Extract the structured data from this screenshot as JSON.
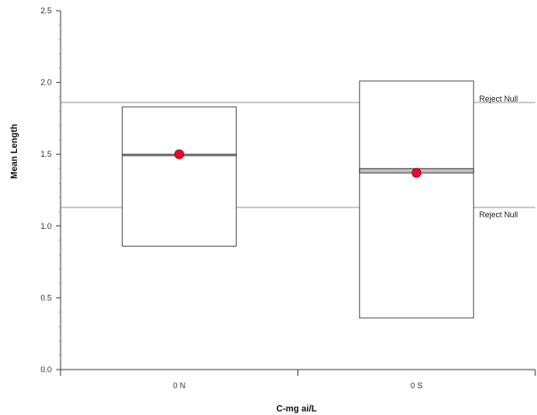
{
  "chart_data": {
    "type": "box",
    "ylabel": "Mean Length",
    "xlabel": "C-mg ai/L",
    "ylim": [
      0.0,
      2.5
    ],
    "y_ticks": [
      "0.0",
      "0.5",
      "1.0",
      "1.5",
      "2.0",
      "2.5"
    ],
    "categories": [
      "0 N",
      "0 S"
    ],
    "boxes": [
      {
        "category": "0 N",
        "low": 0.86,
        "high": 1.83,
        "center_low": 1.49,
        "center_high": 1.5,
        "mean": 1.5
      },
      {
        "category": "0 S",
        "low": 0.36,
        "high": 2.01,
        "center_low": 1.37,
        "center_high": 1.4,
        "mean": 1.37
      }
    ],
    "reference_lines": [
      {
        "value": 1.86,
        "label": "Reject Null"
      },
      {
        "value": 1.13,
        "label": "Reject Null"
      }
    ],
    "colors": {
      "mean_marker": "#e0102a",
      "box_stroke": "#555555",
      "reference_line": "#bbbbbb",
      "center_band": "#bfbfbf"
    }
  }
}
